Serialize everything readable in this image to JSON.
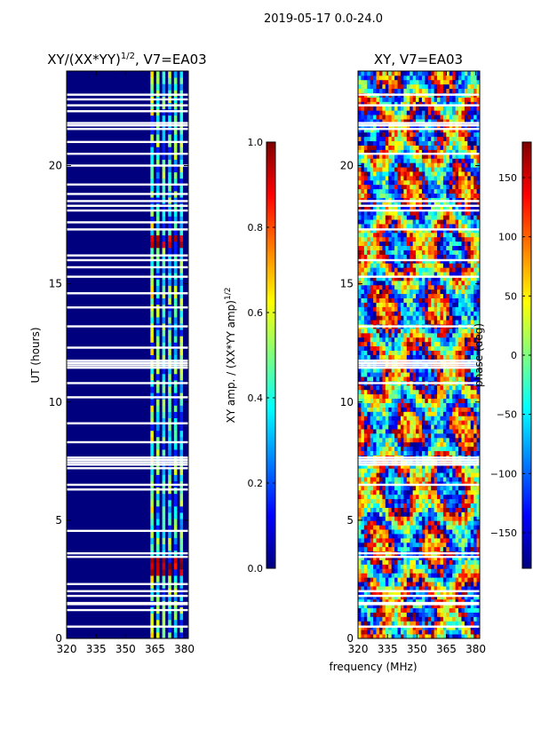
{
  "figure_title": "2019-05-17 0.0-24.0",
  "chart_data": [
    {
      "type": "heatmap",
      "title": "XY/(XX*YY)",
      "title_exponent": "1/2",
      "title_suffix": ", V7=EA03",
      "xlabel": "",
      "ylabel": "UT (hours)",
      "x_range": [
        320,
        382
      ],
      "y_range": [
        0,
        24
      ],
      "x_ticks": [
        320,
        335,
        350,
        365,
        380
      ],
      "y_ticks": [
        0,
        5,
        10,
        15,
        20
      ],
      "colorbar": {
        "label": "XY amp. / (XX*YY amp)",
        "label_exponent": "1/2",
        "range": [
          0.0,
          1.0
        ],
        "ticks": [
          "0.0",
          "0.2",
          "0.4",
          "0.6",
          "0.8",
          "1.0"
        ]
      },
      "colormap": "jet",
      "flagged_rows_ut": [
        0.5,
        1.2,
        1.45,
        1.5,
        1.8,
        2.0,
        2.3,
        3.45,
        3.6,
        4.55,
        6.3,
        6.5,
        7.2,
        7.35,
        7.45,
        7.55,
        7.65,
        8.3,
        9.1,
        10.2,
        10.8,
        11.45,
        11.55,
        11.65,
        11.75,
        12.3,
        13.2,
        14.0,
        14.6,
        15.3,
        15.7,
        16.0,
        16.2,
        17.3,
        17.6,
        18.1,
        18.3,
        18.5,
        18.8,
        19.2,
        20.0,
        20.5,
        21.0,
        21.55,
        21.7,
        21.8,
        22.3,
        22.55,
        22.8,
        23.0
      ],
      "active_band_mhz": [
        362,
        380
      ],
      "active_columns_mhz": [
        363.5,
        366.5,
        369.5,
        372.5,
        375.5,
        378.5
      ],
      "peak_segments_ut": [
        [
          2.6,
          3.4
        ],
        [
          16.4,
          17.0
        ]
      ]
    },
    {
      "type": "heatmap",
      "title": "XY, V7=EA03",
      "xlabel": "frequency (MHz)",
      "ylabel": "",
      "x_range": [
        320,
        382
      ],
      "y_range": [
        0,
        24
      ],
      "x_ticks": [
        320,
        335,
        350,
        365,
        380
      ],
      "y_ticks": [
        0,
        5,
        10,
        15,
        20
      ],
      "colorbar": {
        "label": "phase (deg)",
        "range": [
          -180,
          180
        ],
        "ticks": [
          "−150",
          "−100",
          "−50",
          "0",
          "50",
          "100",
          "150"
        ]
      },
      "colormap": "jet",
      "flagged_rows_ut": [
        0.5,
        1.45,
        1.5,
        1.8,
        2.0,
        3.45,
        3.6,
        6.5,
        7.35,
        7.45,
        7.55,
        7.65,
        10.8,
        11.45,
        11.55,
        11.65,
        11.75,
        13.2,
        15.3,
        16.0,
        17.3,
        18.1,
        18.3,
        18.5,
        20.5,
        21.55,
        21.7,
        21.8,
        22.55,
        23.0
      ]
    }
  ]
}
